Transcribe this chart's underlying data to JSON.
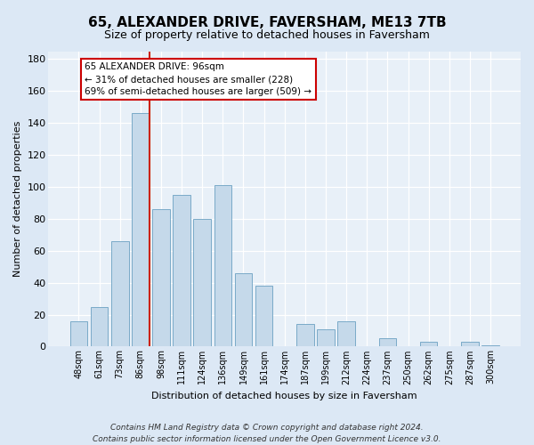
{
  "title": "65, ALEXANDER DRIVE, FAVERSHAM, ME13 7TB",
  "subtitle": "Size of property relative to detached houses in Faversham",
  "xlabel": "Distribution of detached houses by size in Faversham",
  "ylabel": "Number of detached properties",
  "bar_labels": [
    "48sqm",
    "61sqm",
    "73sqm",
    "86sqm",
    "98sqm",
    "111sqm",
    "124sqm",
    "136sqm",
    "149sqm",
    "161sqm",
    "174sqm",
    "187sqm",
    "199sqm",
    "212sqm",
    "224sqm",
    "237sqm",
    "250sqm",
    "262sqm",
    "275sqm",
    "287sqm",
    "300sqm"
  ],
  "bar_values": [
    16,
    25,
    66,
    146,
    86,
    95,
    80,
    101,
    46,
    38,
    0,
    14,
    11,
    16,
    0,
    5,
    0,
    3,
    0,
    3,
    1
  ],
  "bar_color": "#c5d9ea",
  "bar_edge_color": "#7aaac8",
  "annotation_title": "65 ALEXANDER DRIVE: 96sqm",
  "annotation_line1": "← 31% of detached houses are smaller (228)",
  "annotation_line2": "69% of semi-detached houses are larger (509) →",
  "annotation_box_facecolor": "#ffffff",
  "annotation_box_edgecolor": "#cc0000",
  "red_line_color": "#cc2200",
  "ylim": [
    0,
    185
  ],
  "yticks": [
    0,
    20,
    40,
    60,
    80,
    100,
    120,
    140,
    160,
    180
  ],
  "footer_line1": "Contains HM Land Registry data © Crown copyright and database right 2024.",
  "footer_line2": "Contains public sector information licensed under the Open Government Licence v3.0.",
  "bg_color": "#dce8f5",
  "plot_bg_color": "#e8f0f8",
  "title_fontsize": 11,
  "subtitle_fontsize": 9,
  "axis_label_fontsize": 8,
  "tick_fontsize": 7,
  "footer_fontsize": 6.5,
  "annotation_fontsize": 7.5
}
